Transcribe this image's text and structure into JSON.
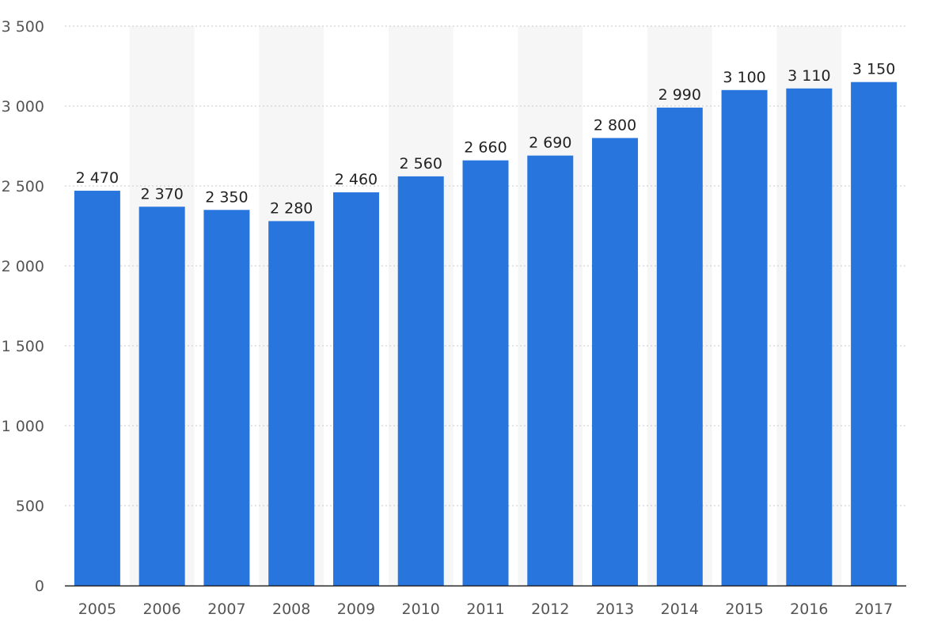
{
  "chart_data": {
    "type": "bar",
    "categories": [
      "2005",
      "2006",
      "2007",
      "2008",
      "2009",
      "2010",
      "2011",
      "2012",
      "2013",
      "2014",
      "2015",
      "2016",
      "2017"
    ],
    "values": [
      2470,
      2370,
      2350,
      2280,
      2460,
      2560,
      2660,
      2690,
      2800,
      2990,
      3100,
      3110,
      3150
    ],
    "value_labels": [
      "2 470",
      "2 370",
      "2 350",
      "2 280",
      "2 460",
      "2 560",
      "2 660",
      "2 690",
      "2 800",
      "2 990",
      "3 100",
      "3 110",
      "3 150"
    ],
    "yticks": [
      0,
      500,
      1000,
      1500,
      2000,
      2500,
      3000,
      3500
    ],
    "ytick_labels": [
      "0",
      "500",
      "1 000",
      "1 500",
      "2 000",
      "2 500",
      "3 000",
      "3 500"
    ],
    "ylim": [
      0,
      3500
    ],
    "title": "",
    "xlabel": "",
    "ylabel": "",
    "grid": true,
    "alternating_column_bands": true,
    "legend": "none",
    "colors": {
      "bar": "#2875de",
      "band": "#f6f6f6",
      "grid": "#c8c8c8",
      "axis": "#222222",
      "tick_text": "#555555",
      "label_text": "#222222"
    }
  }
}
